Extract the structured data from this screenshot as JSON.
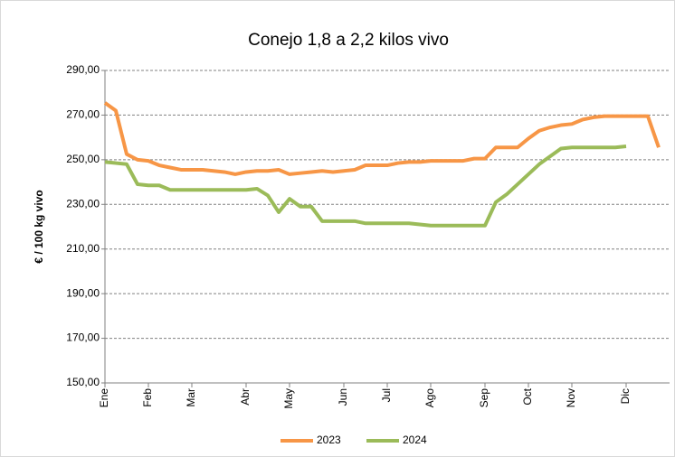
{
  "chart_data": {
    "type": "line",
    "title": "Conejo 1,8 a 2,2 kilos vivo",
    "y_label": "€ / 100 kg vivo",
    "categories": [
      "Ene",
      null,
      null,
      null,
      "Feb",
      null,
      null,
      null,
      "Mar",
      null,
      null,
      null,
      null,
      "Abr",
      null,
      null,
      null,
      "May",
      null,
      null,
      null,
      null,
      "Jun",
      null,
      null,
      null,
      "Jul",
      null,
      null,
      null,
      "Ago",
      null,
      null,
      null,
      null,
      "Sep",
      null,
      null,
      null,
      "Oct",
      null,
      null,
      null,
      "Nov",
      null,
      null,
      null,
      null,
      "Dic",
      null,
      null,
      null
    ],
    "series": [
      {
        "name": "2023",
        "color": "#f79646",
        "values": [
          275.5,
          272,
          252.5,
          250,
          249.5,
          247.5,
          246.5,
          245.5,
          245.5,
          245.5,
          245,
          244.5,
          243.5,
          244.5,
          245,
          245,
          245.5,
          243.5,
          244,
          244.5,
          245,
          244.5,
          245,
          245.5,
          247.5,
          247.5,
          247.5,
          248.5,
          249,
          249,
          249.5,
          249.5,
          249.5,
          249.5,
          250.5,
          250.5,
          255.5,
          255.5,
          255.5,
          259.5,
          263,
          264.5,
          265.5,
          266,
          268,
          269,
          269.5,
          269.5,
          269.5,
          269.5,
          269.5,
          255.5
        ]
      },
      {
        "name": "2024",
        "color": "#9bbb59",
        "values": [
          249,
          248.5,
          248,
          239,
          238.5,
          238.5,
          236.5,
          236.5,
          236.5,
          236.5,
          236.5,
          236.5,
          236.5,
          236.5,
          237,
          234,
          226.5,
          232.5,
          229,
          229,
          222.5,
          222.5,
          222.5,
          222.5,
          221.5,
          221.5,
          221.5,
          221.5,
          221.5,
          221,
          220.5,
          220.5,
          220.5,
          220.5,
          220.5,
          220.5,
          231,
          234.5,
          239,
          243.5,
          248,
          251.5,
          255,
          255.5,
          255.5,
          255.5,
          255.5,
          255.5,
          256,
          null,
          null,
          null
        ]
      }
    ],
    "ylim": [
      150,
      290
    ],
    "yticks": [
      {
        "value": 150,
        "label": "150,00"
      },
      {
        "value": 170,
        "label": "170,00"
      },
      {
        "value": 190,
        "label": "190,00"
      },
      {
        "value": 210,
        "label": "210,00"
      },
      {
        "value": 230,
        "label": "230,00"
      },
      {
        "value": 250,
        "label": "250,00"
      },
      {
        "value": 270,
        "label": "270,00"
      },
      {
        "value": 290,
        "label": "290,00"
      }
    ],
    "grid": true,
    "legend": "bottom"
  }
}
